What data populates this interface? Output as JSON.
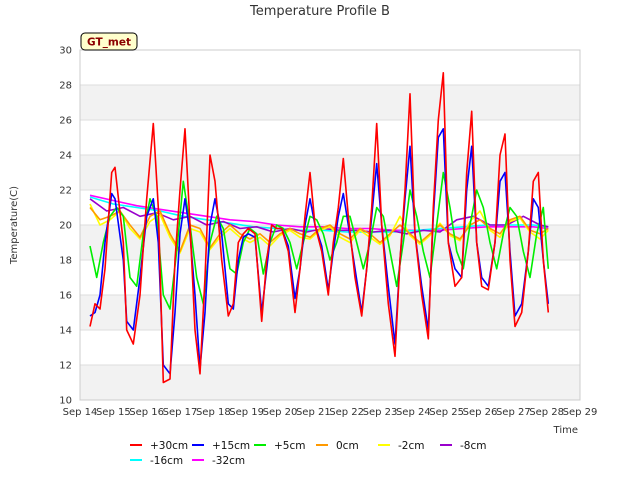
{
  "chart_data": {
    "type": "line",
    "title": "Temperature Profile B",
    "xlabel": "Time",
    "ylabel": "Temperature(C)",
    "badge": "GT_met",
    "ylim": [
      10,
      30
    ],
    "yticks": [
      10,
      12,
      14,
      16,
      18,
      20,
      22,
      24,
      26,
      28,
      30
    ],
    "xlim": [
      0,
      15
    ],
    "xtick_labels": [
      "Sep 14",
      "Sep 15",
      "Sep 16",
      "Sep 17",
      "Sep 18",
      "Sep 19",
      "Sep 20",
      "Sep 21",
      "Sep 22",
      "Sep 23",
      "Sep 24",
      "Sep 25",
      "Sep 26",
      "Sep 27",
      "Sep 28",
      "Sep 29"
    ],
    "x_unit": "days since Sep 14",
    "grid": true,
    "legend_position": "bottom",
    "series": [
      {
        "name": "+30cm",
        "color": "#ff0000",
        "x": [
          0.3,
          0.45,
          0.6,
          0.75,
          0.95,
          1.05,
          1.3,
          1.4,
          1.6,
          1.8,
          2.0,
          2.2,
          2.35,
          2.5,
          2.7,
          2.85,
          3.0,
          3.15,
          3.3,
          3.45,
          3.6,
          3.75,
          3.9,
          4.05,
          4.25,
          4.45,
          4.6,
          4.75,
          4.9,
          5.05,
          5.25,
          5.45,
          5.6,
          5.75,
          5.9,
          6.05,
          6.25,
          6.45,
          6.6,
          6.75,
          6.9,
          7.05,
          7.25,
          7.45,
          7.6,
          7.75,
          7.9,
          8.05,
          8.25,
          8.45,
          8.6,
          8.75,
          8.9,
          9.05,
          9.25,
          9.45,
          9.6,
          9.75,
          9.9,
          10.05,
          10.25,
          10.45,
          10.6,
          10.75,
          10.9,
          11.05,
          11.25,
          11.45,
          11.6,
          11.75,
          11.9,
          12.05,
          12.25,
          12.45,
          12.6,
          12.75,
          12.9,
          13.05,
          13.25,
          13.45,
          13.6,
          13.75,
          13.9,
          14.05
        ],
        "y": [
          14.2,
          15.5,
          15.2,
          17.5,
          23.0,
          23.3,
          19.0,
          14.0,
          13.2,
          16.0,
          21.5,
          25.8,
          21.0,
          11.0,
          11.2,
          18.0,
          22.0,
          25.5,
          20.0,
          14.0,
          11.5,
          17.0,
          24.0,
          22.5,
          18.0,
          14.8,
          15.5,
          19.0,
          19.5,
          19.8,
          19.5,
          14.5,
          18.0,
          20.0,
          19.8,
          19.8,
          18.5,
          15.0,
          17.5,
          20.5,
          23.0,
          20.0,
          18.5,
          16.0,
          19.0,
          21.0,
          23.8,
          20.5,
          17.0,
          14.8,
          17.5,
          21.0,
          25.8,
          20.0,
          15.5,
          12.5,
          18.0,
          22.0,
          27.5,
          19.5,
          16.0,
          13.5,
          21.0,
          26.0,
          28.7,
          19.0,
          16.5,
          17.0,
          23.0,
          26.5,
          19.0,
          16.5,
          16.3,
          19.0,
          24.0,
          25.2,
          18.0,
          14.2,
          15.0,
          18.5,
          22.5,
          23.0,
          18.0,
          15.0
        ]
      },
      {
        "name": "+15cm",
        "color": "#0000ff",
        "x": [
          0.3,
          0.45,
          0.6,
          0.75,
          0.95,
          1.05,
          1.3,
          1.4,
          1.6,
          1.8,
          2.0,
          2.2,
          2.35,
          2.5,
          2.7,
          2.85,
          3.0,
          3.15,
          3.3,
          3.45,
          3.6,
          3.75,
          3.9,
          4.05,
          4.25,
          4.45,
          4.6,
          4.75,
          4.9,
          5.05,
          5.25,
          5.45,
          5.6,
          5.75,
          5.9,
          6.05,
          6.25,
          6.45,
          6.6,
          6.75,
          6.9,
          7.05,
          7.25,
          7.45,
          7.6,
          7.75,
          7.9,
          8.05,
          8.25,
          8.45,
          8.6,
          8.75,
          8.9,
          9.05,
          9.25,
          9.45,
          9.6,
          9.75,
          9.9,
          10.05,
          10.25,
          10.45,
          10.6,
          10.75,
          10.9,
          11.05,
          11.25,
          11.45,
          11.6,
          11.75,
          11.9,
          12.05,
          12.25,
          12.45,
          12.6,
          12.75,
          12.9,
          13.05,
          13.25,
          13.45,
          13.6,
          13.75,
          13.9,
          14.05
        ],
        "y": [
          14.8,
          15.0,
          16.0,
          19.0,
          21.8,
          21.5,
          18.0,
          14.5,
          14.0,
          17.0,
          20.5,
          21.5,
          19.0,
          12.0,
          11.5,
          15.0,
          19.5,
          21.5,
          19.5,
          16.0,
          11.8,
          15.0,
          20.0,
          21.5,
          19.5,
          15.5,
          15.2,
          18.0,
          19.3,
          19.5,
          19.3,
          15.0,
          17.5,
          20.0,
          19.8,
          19.8,
          18.8,
          15.8,
          17.5,
          20.0,
          21.5,
          20.0,
          18.8,
          16.3,
          18.5,
          20.5,
          21.8,
          20.0,
          17.5,
          15.0,
          17.5,
          20.5,
          23.5,
          20.0,
          16.5,
          13.2,
          18.0,
          21.5,
          24.5,
          19.5,
          16.5,
          14.0,
          20.5,
          25.0,
          25.5,
          19.0,
          17.5,
          17.0,
          22.0,
          24.5,
          19.0,
          17.0,
          16.5,
          19.0,
          22.5,
          23.0,
          18.5,
          14.8,
          15.5,
          18.5,
          21.5,
          21.0,
          18.0,
          15.5
        ]
      },
      {
        "name": "+5cm",
        "color": "#00ee00",
        "x": [
          0.3,
          0.5,
          0.7,
          0.9,
          1.1,
          1.3,
          1.5,
          1.7,
          1.9,
          2.1,
          2.3,
          2.5,
          2.7,
          2.9,
          3.1,
          3.3,
          3.5,
          3.7,
          3.9,
          4.1,
          4.3,
          4.5,
          4.7,
          4.9,
          5.1,
          5.3,
          5.5,
          5.7,
          5.9,
          6.1,
          6.3,
          6.5,
          6.7,
          6.9,
          7.1,
          7.3,
          7.5,
          7.7,
          7.9,
          8.1,
          8.3,
          8.5,
          8.7,
          8.9,
          9.1,
          9.3,
          9.5,
          9.7,
          9.9,
          10.1,
          10.3,
          10.5,
          10.7,
          10.9,
          11.1,
          11.3,
          11.5,
          11.7,
          11.9,
          12.1,
          12.3,
          12.5,
          12.7,
          12.9,
          13.1,
          13.3,
          13.5,
          13.7,
          13.9,
          14.05
        ],
        "y": [
          18.8,
          17.0,
          19.0,
          20.5,
          21.0,
          20.5,
          17.0,
          16.5,
          19.5,
          21.5,
          20.5,
          16.0,
          15.2,
          18.5,
          22.5,
          20.0,
          17.0,
          15.5,
          19.0,
          20.5,
          19.8,
          17.5,
          17.2,
          19.0,
          19.8,
          19.5,
          17.2,
          19.0,
          20.0,
          19.8,
          19.0,
          17.5,
          19.0,
          20.5,
          20.3,
          19.5,
          18.0,
          19.0,
          20.5,
          20.5,
          19.0,
          17.5,
          19.0,
          21.0,
          20.5,
          18.5,
          16.5,
          19.0,
          22.0,
          20.5,
          18.5,
          17.0,
          20.0,
          23.0,
          21.0,
          18.5,
          17.5,
          20.0,
          22.0,
          21.0,
          19.0,
          17.5,
          19.5,
          21.0,
          20.5,
          18.5,
          17.0,
          19.5,
          21.0,
          17.5
        ]
      },
      {
        "name": "0cm",
        "color": "#ff9900",
        "x": [
          0.3,
          0.6,
          0.9,
          1.2,
          1.5,
          1.8,
          2.1,
          2.4,
          2.7,
          3.0,
          3.3,
          3.6,
          3.9,
          4.2,
          4.5,
          4.8,
          5.1,
          5.4,
          5.7,
          6.0,
          6.3,
          6.6,
          6.9,
          7.2,
          7.5,
          7.8,
          8.1,
          8.4,
          8.7,
          9.0,
          9.3,
          9.6,
          9.9,
          10.2,
          10.5,
          10.8,
          11.1,
          11.4,
          11.7,
          12.0,
          12.3,
          12.6,
          12.9,
          13.2,
          13.5,
          13.8,
          14.05
        ],
        "y": [
          21.0,
          20.3,
          20.5,
          20.8,
          20.0,
          19.3,
          20.5,
          20.8,
          19.5,
          18.5,
          20.0,
          19.8,
          18.7,
          19.5,
          20.0,
          19.5,
          19.2,
          19.5,
          19.0,
          19.5,
          19.8,
          19.5,
          19.3,
          19.8,
          20.0,
          19.5,
          19.2,
          19.8,
          19.5,
          19.0,
          19.5,
          20.0,
          19.5,
          19.0,
          19.5,
          20.0,
          19.5,
          19.2,
          20.0,
          20.3,
          19.8,
          19.5,
          20.3,
          20.5,
          19.7,
          19.5,
          19.8
        ]
      },
      {
        "name": "-2cm",
        "color": "#ffff00",
        "x": [
          0.3,
          0.6,
          0.9,
          1.2,
          1.5,
          1.8,
          2.1,
          2.4,
          2.7,
          3.0,
          3.3,
          3.6,
          3.9,
          4.2,
          4.5,
          4.8,
          5.1,
          5.4,
          5.7,
          6.0,
          6.3,
          6.6,
          6.9,
          7.2,
          7.5,
          7.8,
          8.1,
          8.4,
          8.7,
          9.0,
          9.3,
          9.6,
          9.9,
          10.2,
          10.5,
          10.8,
          11.1,
          11.4,
          11.7,
          12.0,
          12.3,
          12.6,
          12.9,
          13.2,
          13.5,
          13.8,
          14.05
        ],
        "y": [
          21.2,
          20.0,
          20.3,
          20.8,
          19.8,
          19.2,
          20.2,
          20.6,
          19.3,
          18.4,
          19.8,
          19.6,
          18.6,
          19.3,
          19.8,
          19.3,
          19.0,
          19.3,
          18.8,
          19.4,
          19.7,
          19.3,
          19.2,
          19.7,
          19.9,
          19.3,
          19.0,
          19.7,
          19.3,
          18.9,
          19.4,
          20.5,
          19.4,
          18.9,
          19.4,
          20.1,
          19.4,
          19.1,
          20.2,
          20.8,
          19.7,
          19.3,
          20.2,
          20.4,
          19.6,
          19.2,
          19.7
        ]
      },
      {
        "name": "-8cm",
        "color": "#9900cc",
        "x": [
          0.3,
          0.8,
          1.3,
          1.8,
          2.3,
          2.8,
          3.3,
          3.8,
          4.3,
          4.8,
          5.3,
          5.8,
          6.3,
          6.8,
          7.3,
          7.8,
          8.3,
          8.8,
          9.3,
          9.8,
          10.3,
          10.8,
          11.3,
          11.8,
          12.3,
          12.8,
          13.3,
          13.8,
          14.05
        ],
        "y": [
          21.5,
          20.8,
          21.0,
          20.5,
          20.7,
          20.3,
          20.5,
          20.0,
          20.2,
          19.8,
          19.9,
          19.6,
          19.8,
          19.6,
          19.8,
          19.7,
          19.7,
          19.6,
          19.7,
          19.5,
          19.7,
          19.6,
          20.3,
          20.5,
          20.0,
          20.0,
          20.5,
          20.0,
          19.9
        ]
      },
      {
        "name": "-16cm",
        "color": "#00ffff",
        "x": [
          0.3,
          1.0,
          1.7,
          2.4,
          3.1,
          3.8,
          4.5,
          5.2,
          5.9,
          6.6,
          7.3,
          8.0,
          8.7,
          9.4,
          10.1,
          10.8,
          11.5,
          12.2,
          12.9,
          13.6,
          14.05
        ],
        "y": [
          21.6,
          21.2,
          21.0,
          20.8,
          20.5,
          20.3,
          20.1,
          19.9,
          19.8,
          19.7,
          19.7,
          19.6,
          19.6,
          19.6,
          19.7,
          19.8,
          19.9,
          20.0,
          20.0,
          20.0,
          19.9
        ]
      },
      {
        "name": "-32cm",
        "color": "#ff00ff",
        "x": [
          0.3,
          1.0,
          1.7,
          2.4,
          3.1,
          3.8,
          4.5,
          5.2,
          5.9,
          6.6,
          7.3,
          8.0,
          8.7,
          9.4,
          10.1,
          10.8,
          11.5,
          12.2,
          12.9,
          13.6,
          14.05
        ],
        "y": [
          21.7,
          21.4,
          21.1,
          20.9,
          20.7,
          20.5,
          20.3,
          20.2,
          20.0,
          19.9,
          19.9,
          19.8,
          19.8,
          19.7,
          19.7,
          19.7,
          19.8,
          19.9,
          19.9,
          19.9,
          19.8
        ]
      }
    ]
  }
}
